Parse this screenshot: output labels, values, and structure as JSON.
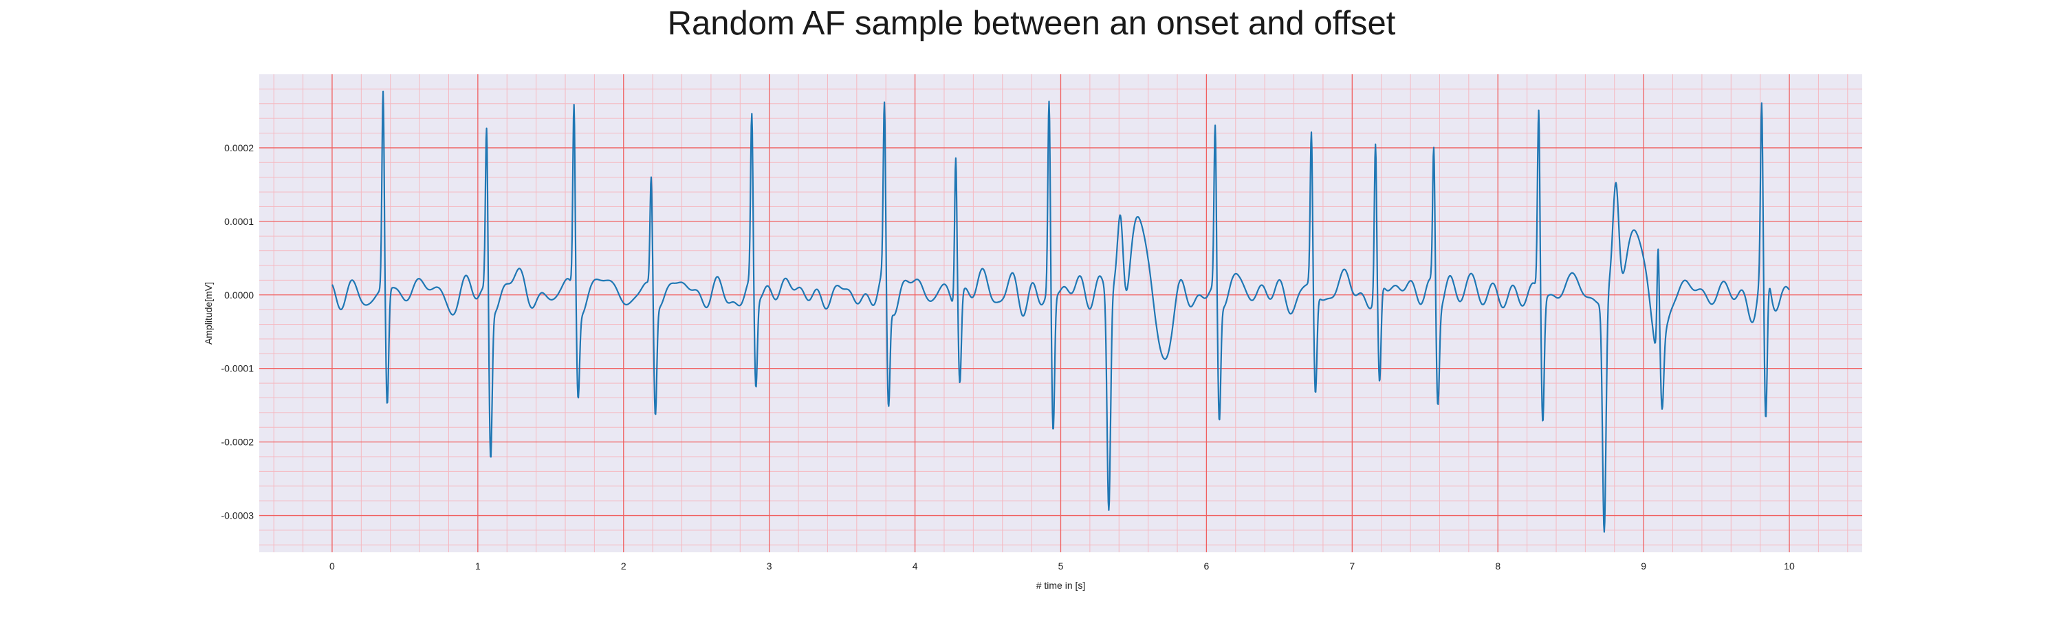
{
  "chart_data": {
    "type": "line",
    "title": "Random AF sample between an onset and offset",
    "xlabel": "# time in [s]",
    "ylabel": "Amplitude[mV]",
    "xlim": [
      -0.5,
      10.5
    ],
    "ylim": [
      -0.00035,
      0.0003
    ],
    "xticks": [
      0,
      1,
      2,
      3,
      4,
      5,
      6,
      7,
      8,
      9,
      10
    ],
    "xtick_labels": [
      "0",
      "1",
      "2",
      "3",
      "4",
      "5",
      "6",
      "7",
      "8",
      "9",
      "10"
    ],
    "yticks": [
      -0.0003,
      -0.0002,
      -0.0001,
      0.0,
      0.0001,
      0.0002
    ],
    "ytick_labels": [
      "-0.0003",
      "-0.0002",
      "-0.0001",
      "0.0000",
      "0.0001",
      "0.0002"
    ],
    "grid": true,
    "minor_grid": true,
    "colors": {
      "line": "#1f77b4",
      "background": "#eae8f3",
      "major_grid": "#f06060",
      "minor_grid": "#f5b8c0"
    },
    "series": [
      {
        "beats": [
          [
            0.35,
            0.00027,
            -0.00016
          ],
          [
            1.06,
            0.000225,
            -0.00021
          ],
          [
            1.66,
            0.00026,
            -0.00012
          ],
          [
            2.19,
            0.000155,
            -0.000155
          ],
          [
            2.88,
            0.00023,
            -0.00013
          ],
          [
            3.79,
            0.000235,
            -0.000155
          ],
          [
            4.28,
            0.000205,
            -0.000115
          ],
          [
            4.92,
            0.00026,
            -0.00019
          ],
          [
            6.06,
            0.000225,
            -0.000165
          ],
          [
            6.72,
            0.00021,
            -0.00014
          ],
          [
            7.16,
            0.00021,
            -0.00013
          ],
          [
            7.56,
            0.000195,
            -0.000135
          ],
          [
            8.28,
            0.00025,
            -0.00017
          ],
          [
            9.1,
            0.00015,
            -8e-05
          ],
          [
            9.81,
            0.000225,
            -0.000215
          ]
        ],
        "special_events": [
          {
            "t": 5.33,
            "peak": -0.0003,
            "after": 0.000135
          },
          {
            "t": 8.73,
            "peak": -0.00032,
            "after": 0.000145
          }
        ],
        "t_start": 0,
        "t_end": 10
      }
    ]
  }
}
